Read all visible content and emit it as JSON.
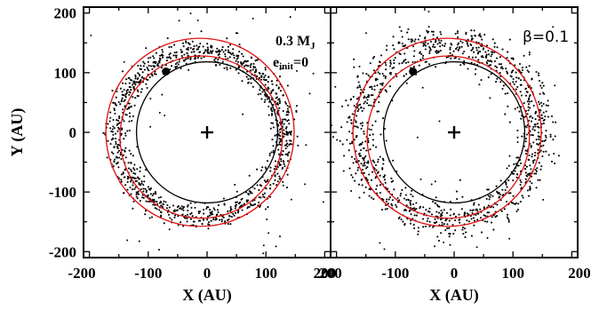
{
  "chart_data": [
    {
      "type": "scatter",
      "panel": "left",
      "xlabel": "X (AU)",
      "ylabel": "Y (AU)",
      "xlim": [
        -210,
        210
      ],
      "ylim": [
        -210,
        210
      ],
      "xticks": [
        "-200",
        "-100",
        "0",
        "100",
        "200"
      ],
      "yticks": [
        "200",
        "100",
        "0",
        "-100",
        "-200"
      ],
      "annotations": {
        "mass_label": "0.3 M",
        "mass_sub": "J",
        "ecc_label": "e",
        "ecc_sub": "init",
        "ecc_value": "=0"
      },
      "star_marker": [
        0,
        0
      ],
      "planet": {
        "x": -70,
        "y": 102
      },
      "planet_orbit": {
        "cx": 0,
        "cy": 0,
        "r": 120,
        "color": "#000000"
      },
      "red_circles": [
        {
          "cx": -12,
          "cy": 0,
          "r": 160,
          "color": "#e01010"
        },
        {
          "cx": -10,
          "cy": -8,
          "r": 138,
          "color": "#e01010"
        }
      ],
      "particles": {
        "count": 1100,
        "ring_center": [
          -10,
          -3
        ],
        "ring_mean_radius": 143,
        "ring_sigma": 11,
        "background_count": 45,
        "background_range": [
          -205,
          205
        ]
      }
    },
    {
      "type": "scatter",
      "panel": "right",
      "xlabel": "X (AU)",
      "ylabel": "",
      "xlim": [
        -210,
        210
      ],
      "ylim": [
        -210,
        210
      ],
      "xticks": [
        "-100",
        "0",
        "100",
        "200"
      ],
      "yticks": [],
      "annotations": {
        "beta_label": "β=0.1"
      },
      "star_marker": [
        0,
        0
      ],
      "planet": {
        "x": -70,
        "y": 102
      },
      "planet_orbit": {
        "cx": 0,
        "cy": 0,
        "r": 120,
        "color": "#000000"
      },
      "red_circles": [
        {
          "cx": -12,
          "cy": 0,
          "r": 160,
          "color": "#e01010"
        },
        {
          "cx": -10,
          "cy": -8,
          "r": 138,
          "color": "#e01010"
        }
      ],
      "particles": {
        "count": 1150,
        "ring_center": [
          -12,
          0
        ],
        "ring_mean_radius": 153,
        "ring_sigma": 17,
        "background_count": 40,
        "background_range": [
          -205,
          205
        ]
      }
    }
  ],
  "first_x_tick_left": "-200",
  "shared_divider_tick": "200"
}
